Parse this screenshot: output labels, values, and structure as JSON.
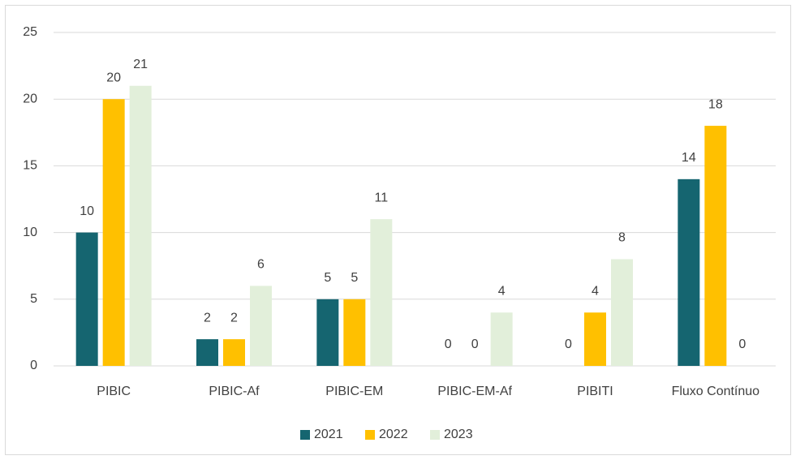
{
  "chart_data": {
    "type": "bar",
    "categories": [
      "PIBIC",
      "PIBIC-Af",
      "PIBIC-EM",
      "PIBIC-EM-Af",
      "PIBITI",
      "Fluxo Contínuo"
    ],
    "series": [
      {
        "name": "2021",
        "color": "#156570",
        "values": [
          10,
          2,
          5,
          0,
          0,
          14
        ]
      },
      {
        "name": "2022",
        "color": "#ffc000",
        "values": [
          20,
          2,
          5,
          0,
          4,
          18
        ]
      },
      {
        "name": "2023",
        "color": "#e2efda",
        "values": [
          21,
          6,
          11,
          4,
          8,
          0
        ]
      }
    ],
    "ylim": [
      0,
      25
    ],
    "yticks": [
      0,
      5,
      10,
      15,
      20,
      25
    ],
    "grid": true,
    "legend": "bottom"
  }
}
